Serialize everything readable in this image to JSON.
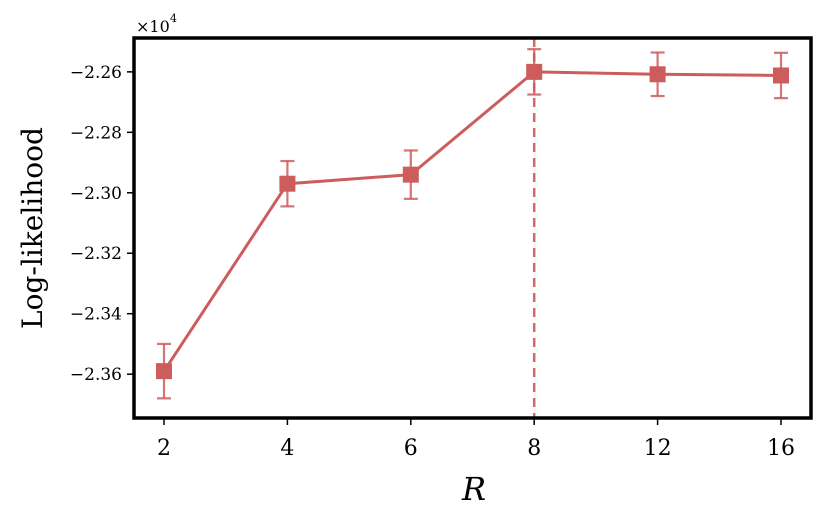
{
  "chart_data": {
    "type": "line",
    "categories": [
      "2",
      "4",
      "6",
      "8",
      "12",
      "16"
    ],
    "series": [
      {
        "values": [
          -2.359,
          -2.297,
          -2.294,
          -2.26,
          -2.2608,
          -2.2612
        ],
        "errors": [
          0.009,
          0.0075,
          0.008,
          0.0075,
          0.0072,
          0.0075
        ],
        "color": "#cd5c5c",
        "marker": "square"
      }
    ],
    "vline": {
      "x": "8",
      "style": "dashed",
      "color": "#cd5c5c"
    },
    "xlabel": "R",
    "ylabel": "Log-likelihood",
    "ylim": [
      -2.3745,
      -2.2488
    ],
    "yticks": [
      -2.36,
      -2.34,
      -2.32,
      -2.3,
      -2.28,
      -2.26
    ],
    "ytick_labels": [
      "−2.36",
      "−2.34",
      "−2.32",
      "−2.30",
      "−2.28",
      "−2.26"
    ],
    "offset_text": {
      "base": "×10",
      "exponent": "4"
    },
    "grid": false
  }
}
